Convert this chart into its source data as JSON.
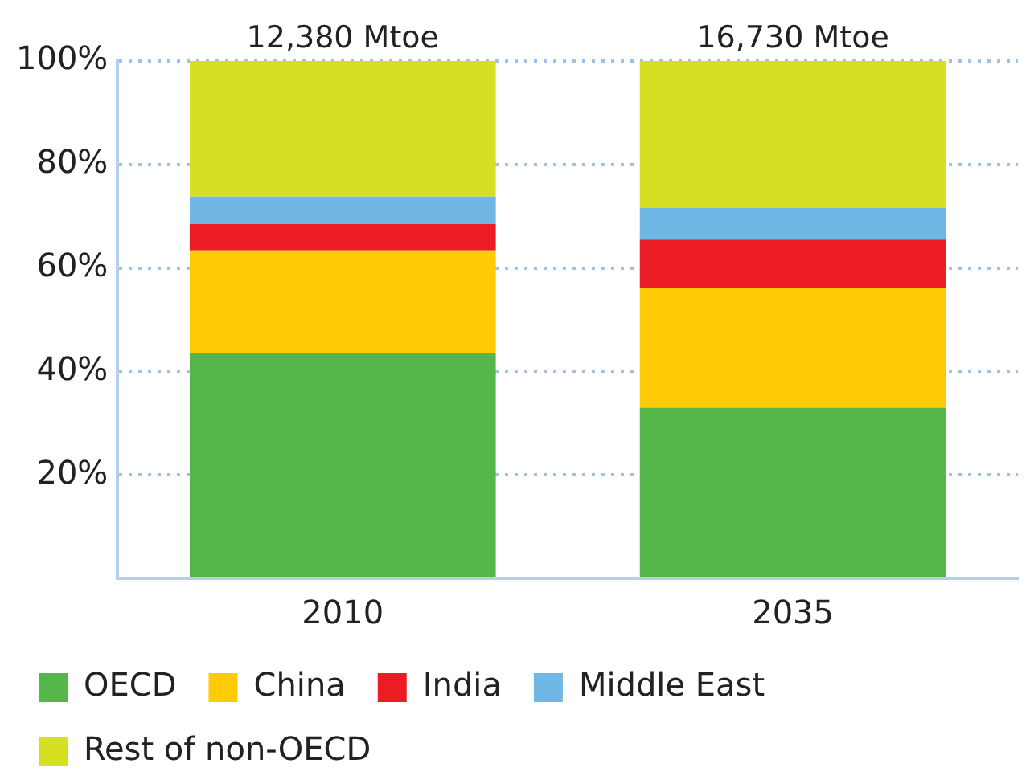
{
  "chart_data": {
    "type": "bar",
    "stacked": true,
    "categories": [
      "2010",
      "2035"
    ],
    "series": [
      {
        "name": "OECD",
        "color": "#55b649",
        "values": [
          43.5,
          33.0
        ]
      },
      {
        "name": "China",
        "color": "#fecb06",
        "values": [
          19.9,
          23.1
        ]
      },
      {
        "name": "India",
        "color": "#ec1c24",
        "values": [
          5.1,
          9.4
        ]
      },
      {
        "name": "Middle East",
        "color": "#6fb7e4",
        "values": [
          5.3,
          6.1
        ]
      },
      {
        "name": "Rest of non-OECD",
        "color": "#d6df21",
        "values": [
          26.2,
          28.4
        ]
      }
    ],
    "ylim": [
      0,
      100
    ],
    "yticks": [
      {
        "value": 0,
        "label": null
      },
      {
        "value": 20,
        "label": "20%"
      },
      {
        "value": 40,
        "label": "40%"
      },
      {
        "value": 60,
        "label": "60%"
      },
      {
        "value": 80,
        "label": "80%"
      },
      {
        "value": 100,
        "label": "100%"
      }
    ],
    "annotations": [
      {
        "text": "12,380 Mtoe",
        "x": "2010",
        "y": 100
      },
      {
        "text": "16,730 Mtoe",
        "x": "2035",
        "y": 100
      }
    ],
    "grid": "y",
    "legend": "bottom"
  }
}
